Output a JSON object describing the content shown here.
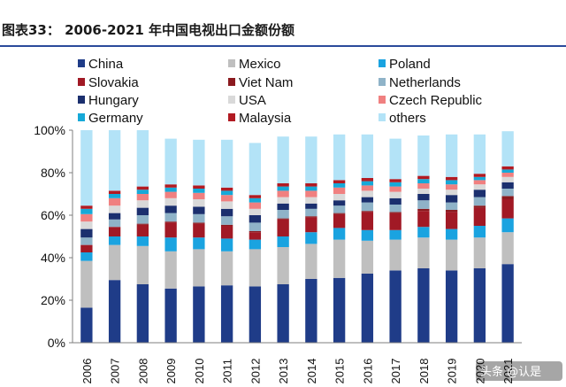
{
  "chart_data": {
    "type": "bar",
    "stacked": true,
    "title": "图表33： 2006-2021 年中国电视出口金额份额",
    "categories": [
      "2006",
      "2007",
      "2008",
      "2009",
      "2010",
      "2011",
      "2012",
      "2013",
      "2014",
      "2015",
      "2016",
      "2017",
      "2018",
      "2019",
      "2020",
      "2021"
    ],
    "y_ticks": [
      "0%",
      "20%",
      "40%",
      "60%",
      "80%",
      "100%"
    ],
    "ylim": [
      0,
      100
    ],
    "grid": false,
    "legend_position": "top",
    "series": [
      {
        "name": "China",
        "color": "#1f3c88",
        "values": [
          16.5,
          29.5,
          27.5,
          25.5,
          26.5,
          27,
          26.5,
          27.5,
          30,
          30.5,
          32.5,
          34,
          35,
          34,
          35,
          37
        ]
      },
      {
        "name": "Mexico",
        "color": "#bfbfbf",
        "values": [
          22,
          16.5,
          18,
          17.5,
          17.5,
          16,
          17.5,
          17.5,
          16.5,
          18,
          15.5,
          14.5,
          14.5,
          14.5,
          14.5,
          15
        ]
      },
      {
        "name": "Poland",
        "color": "#1aa3e0",
        "values": [
          4,
          4,
          4.5,
          6.5,
          5.5,
          6,
          4.5,
          5,
          5.5,
          5.5,
          5,
          4.5,
          5,
          5,
          5.5,
          6.5
        ]
      },
      {
        "name": "Slovakia",
        "color": "#a11925",
        "values": [
          3.5,
          4.5,
          5.5,
          7,
          6.5,
          6,
          3.5,
          8,
          7,
          6.5,
          8.5,
          8,
          7.5,
          8,
          8.5,
          9
        ]
      },
      {
        "name": "Viet Nam",
        "color": "#8b1a1f",
        "values": [
          0,
          0,
          0.5,
          0.5,
          0.5,
          0.5,
          0.5,
          0.5,
          0.5,
          0.5,
          0.5,
          0.5,
          1,
          1,
          1,
          1.5
        ]
      },
      {
        "name": "Netherlands",
        "color": "#8fb3c8",
        "values": [
          3.5,
          3.5,
          4,
          4,
          4,
          4,
          4,
          4,
          3.5,
          3.5,
          4,
          3.5,
          4,
          3.5,
          4,
          3.5
        ]
      },
      {
        "name": "Hungary",
        "color": "#1b2f6e",
        "values": [
          4,
          3,
          3.5,
          3.5,
          3.5,
          3.5,
          3.5,
          3,
          2.5,
          2.5,
          2.5,
          3,
          3,
          3.5,
          3.5,
          3
        ]
      },
      {
        "name": "USA",
        "color": "#d9d9d9",
        "values": [
          3.5,
          3.5,
          3.5,
          3.5,
          3.5,
          3.5,
          3,
          3,
          3,
          3,
          3,
          3,
          2.5,
          2.5,
          2.5,
          2.5
        ]
      },
      {
        "name": "Czech Republic",
        "color": "#f08080",
        "values": [
          3.5,
          3.5,
          3,
          3,
          3,
          3,
          3,
          3,
          3,
          3,
          2.5,
          2.5,
          2.5,
          2.5,
          2,
          2
        ]
      },
      {
        "name": "Germany",
        "color": "#16a9d8",
        "values": [
          2.5,
          2,
          2,
          2,
          2,
          2,
          2,
          2,
          2,
          2,
          2,
          2,
          2,
          2,
          1.5,
          1.5
        ]
      },
      {
        "name": "Malaysia",
        "color": "#b11a22",
        "values": [
          1.5,
          1.5,
          1.5,
          1.5,
          1.5,
          1.5,
          1.5,
          1.5,
          1.5,
          1.5,
          1.5,
          1.5,
          1.5,
          1.5,
          1.5,
          1.5
        ]
      },
      {
        "name": "others",
        "color": "#b3e3f7",
        "values": [
          35.5,
          28.5,
          26.5,
          21.5,
          21.5,
          22.5,
          24.5,
          22,
          22,
          21.5,
          20.5,
          19,
          19,
          20,
          18.5,
          16.5
        ]
      }
    ]
  },
  "watermark": "头条 @认是"
}
